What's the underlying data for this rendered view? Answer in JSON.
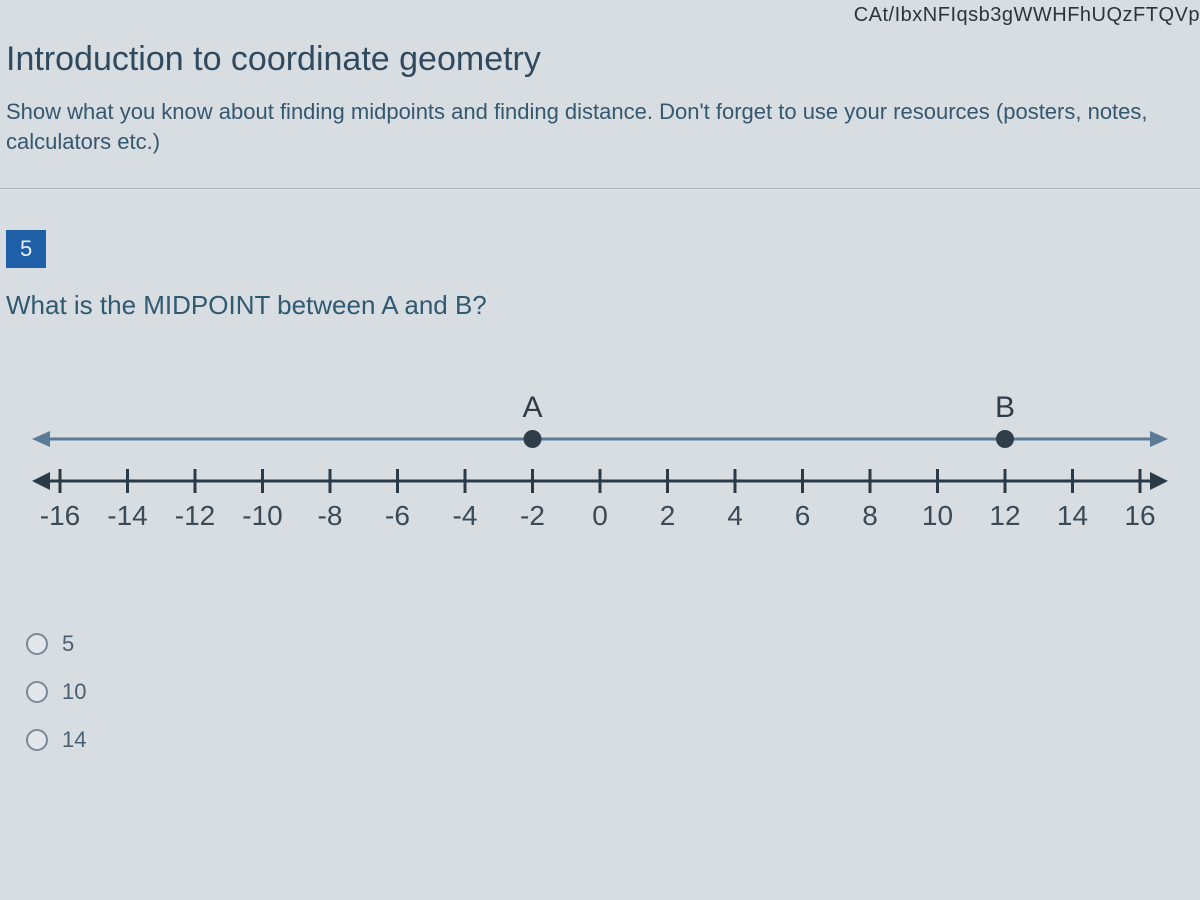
{
  "url_fragment": "CAt/IbxNFIqsb3gWWHFhUQzFTQVp",
  "page_title": "Introduction to coordinate geometry",
  "instructions": "Show what you know about finding midpoints and finding distance.  Don't forget to use your resources (posters, notes, calculators etc.)",
  "question": {
    "number": "5",
    "text": "What is the MIDPOINT between A and B?"
  },
  "numberline": {
    "min": -16,
    "max": 16,
    "step": 2,
    "tick_labels": [
      "-16",
      "-14",
      "-12",
      "-10",
      "-8",
      "-6",
      "-4",
      "-2",
      "0",
      "2",
      "4",
      "6",
      "8",
      "10",
      "12",
      "14",
      "16"
    ],
    "points": [
      {
        "label": "A",
        "value": -2
      },
      {
        "label": "B",
        "value": 12
      }
    ],
    "line_color": "#2a3a46",
    "top_line_color": "#5a7a96",
    "label_color": "#3a4a56",
    "point_color": "#2f3d48",
    "label_fontsize": 28,
    "point_label_fontsize": 30
  },
  "answers": [
    {
      "label": "5"
    },
    {
      "label": "10"
    },
    {
      "label": "14"
    }
  ]
}
